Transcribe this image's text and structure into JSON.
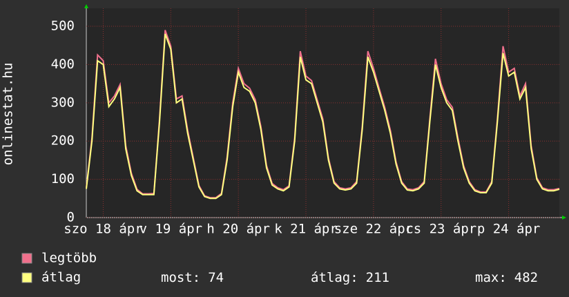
{
  "chart_data": {
    "type": "line",
    "y_label": "onlinestat.hu",
    "x": [
      0,
      2,
      4,
      6,
      8,
      10,
      12,
      14,
      16,
      18,
      20,
      22,
      24,
      26,
      28,
      30,
      32,
      34,
      36,
      38,
      40,
      42,
      44,
      46,
      48,
      50,
      52,
      54,
      56,
      58,
      60,
      62,
      64,
      66,
      68,
      70,
      72,
      74,
      76,
      78,
      80,
      82,
      84,
      86,
      88,
      90,
      92,
      94,
      96,
      98,
      100,
      102,
      104,
      106,
      108,
      110,
      112,
      114,
      116,
      118,
      120,
      122,
      124,
      126,
      128,
      130,
      132,
      134,
      136,
      138,
      140,
      142,
      144,
      146,
      148,
      150,
      152,
      154,
      156,
      158,
      160,
      162,
      164,
      166,
      168
    ],
    "series": [
      {
        "name": "legtöbb",
        "color": "#f0708c",
        "values": [
          78,
          208,
          425,
          410,
          300,
          318,
          348,
          188,
          116,
          74,
          62,
          62,
          63,
          258,
          490,
          448,
          310,
          318,
          228,
          156,
          84,
          57,
          52,
          52,
          63,
          158,
          300,
          390,
          350,
          338,
          308,
          238,
          136,
          89,
          78,
          73,
          83,
          208,
          435,
          370,
          358,
          308,
          258,
          156,
          94,
          78,
          75,
          78,
          94,
          238,
          435,
          390,
          338,
          288,
          228,
          146,
          94,
          75,
          73,
          78,
          94,
          258,
          415,
          350,
          308,
          288,
          208,
          136,
          94,
          73,
          67,
          67,
          94,
          258,
          448,
          380,
          390,
          318,
          350,
          188,
          104,
          78,
          73,
          73,
          76
        ]
      },
      {
        "name": "átlag",
        "color": "#ffff80",
        "values": [
          75,
          200,
          410,
          400,
          290,
          310,
          340,
          180,
          110,
          70,
          60,
          60,
          60,
          250,
          480,
          440,
          300,
          310,
          220,
          150,
          80,
          55,
          50,
          50,
          60,
          150,
          290,
          380,
          340,
          330,
          300,
          230,
          130,
          85,
          75,
          70,
          80,
          200,
          420,
          360,
          350,
          300,
          250,
          150,
          90,
          75,
          72,
          75,
          90,
          230,
          420,
          380,
          330,
          280,
          220,
          140,
          90,
          72,
          70,
          75,
          90,
          250,
          400,
          340,
          300,
          280,
          200,
          130,
          90,
          70,
          65,
          65,
          90,
          250,
          430,
          370,
          380,
          310,
          340,
          180,
          100,
          75,
          70,
          70,
          74
        ]
      }
    ],
    "xlim": [
      0,
      168
    ],
    "xticks": [
      {
        "value": 6,
        "label": "szo 18 ápr"
      },
      {
        "value": 30,
        "label": "v 19 ápr"
      },
      {
        "value": 54,
        "label": "h 20 ápr"
      },
      {
        "value": 78,
        "label": "k 21 ápr"
      },
      {
        "value": 102,
        "label": "sze 22 ápr"
      },
      {
        "value": 126,
        "label": "cs 23 ápr"
      },
      {
        "value": 150,
        "label": "p 24 ápr"
      }
    ],
    "ylim": [
      0,
      547
    ],
    "yticks": [
      0,
      100,
      200,
      300,
      400,
      500
    ],
    "grid": true,
    "stats": [
      {
        "label": "most:",
        "value": 74
      },
      {
        "label": "átlag:",
        "value": 211
      },
      {
        "label": "max:",
        "value": 482
      }
    ]
  }
}
